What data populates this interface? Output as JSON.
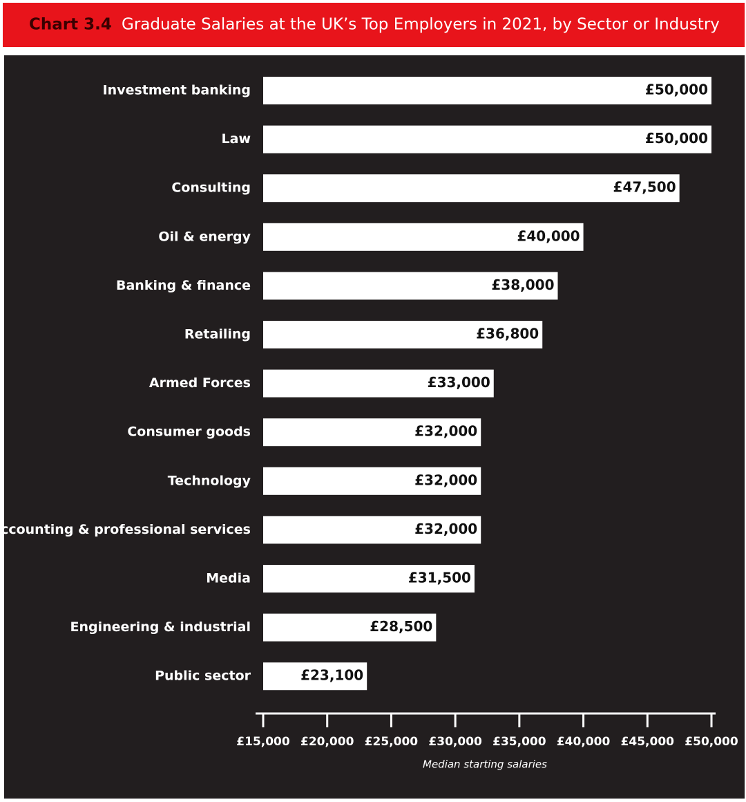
{
  "chart_data": {
    "type": "bar",
    "orientation": "horizontal",
    "chart_label": "Chart 3.4",
    "title": "Graduate Salaries at the UK’s Top Employers in 2021, by Sector or Industry",
    "categories": [
      "Investment banking",
      "Law",
      "Consulting",
      "Oil & energy",
      "Banking & finance",
      "Retailing",
      "Armed Forces",
      "Consumer goods",
      "Technology",
      "Accounting & professional services",
      "Media",
      "Engineering & industrial",
      "Public sector"
    ],
    "values": [
      50000,
      50000,
      47500,
      40000,
      38000,
      36800,
      33000,
      32000,
      32000,
      32000,
      31500,
      28500,
      23100
    ],
    "value_labels": [
      "£50,000",
      "£50,000",
      "£47,500",
      "£40,000",
      "£38,000",
      "£36,800",
      "£33,000",
      "£32,000",
      "£32,000",
      "£32,000",
      "£31,500",
      "£28,500",
      "£23,100"
    ],
    "color": "#ffffff",
    "xlim": [
      15000,
      50000
    ],
    "xticks": [
      {
        "value": 15000,
        "label": "£15,000"
      },
      {
        "value": 20000,
        "label": "£20,000"
      },
      {
        "value": 25000,
        "label": "£25,000"
      },
      {
        "value": 30000,
        "label": "£30,000"
      },
      {
        "value": 35000,
        "label": "£35,000"
      },
      {
        "value": 40000,
        "label": "£40,000"
      },
      {
        "value": 45000,
        "label": "£45,000"
      },
      {
        "value": 50000,
        "label": "£50,000"
      }
    ],
    "x_label": "Median starting salaries"
  }
}
